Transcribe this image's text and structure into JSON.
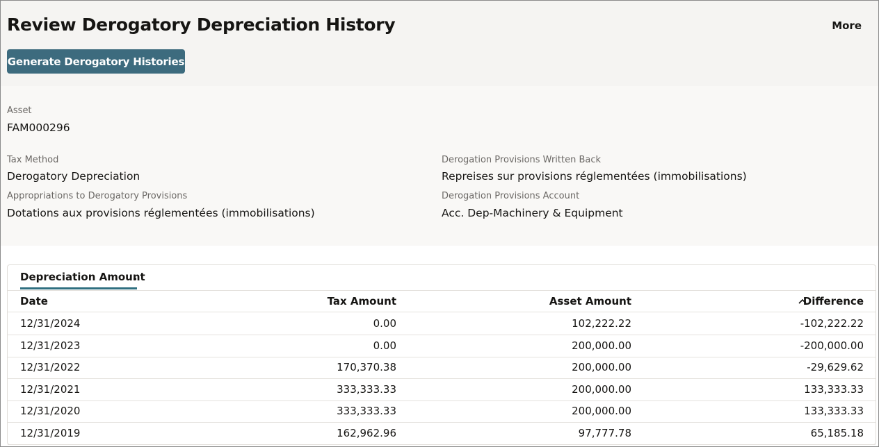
{
  "header": {
    "title": "Review Derogatory Depreciation History",
    "more": "More",
    "button": "Generate Derogatory Histories"
  },
  "fields": [
    {
      "label": "Asset",
      "value": "FAM000296"
    },
    {
      "label": "Tax Method",
      "value": "Derogatory Depreciation"
    },
    {
      "label": "Appropriations to Derogatory Provisions",
      "value": "Dotations aux provisions réglementées (immobilisations)"
    },
    {
      "label": "Derogation Provisions Written Back",
      "value": "Repreises sur provisions réglementées (immobilisations)"
    },
    {
      "label": "Derogation Provisions Account",
      "value": "Acc. Dep-Machinery & Equipment"
    }
  ],
  "tab": "Depreciation Amount",
  "table": {
    "columns": [
      "Date",
      "Tax Amount",
      "Asset Amount",
      "Difference"
    ],
    "rows": [
      [
        "12/31/2024",
        "0.00",
        "102,222.22",
        "-102,222.22"
      ],
      [
        "12/31/2023",
        "0.00",
        "200,000.00",
        "-200,000.00"
      ],
      [
        "12/31/2022",
        "170,370.38",
        "200,000.00",
        "-29,629.62"
      ],
      [
        "12/31/2021",
        "333,333.33",
        "200,000.00",
        "133,333.33"
      ],
      [
        "12/31/2020",
        "333,333.33",
        "200,000.00",
        "133,333.33"
      ],
      [
        "12/31/2019",
        "162,962.96",
        "97,777.78",
        "65,185.18"
      ]
    ]
  }
}
